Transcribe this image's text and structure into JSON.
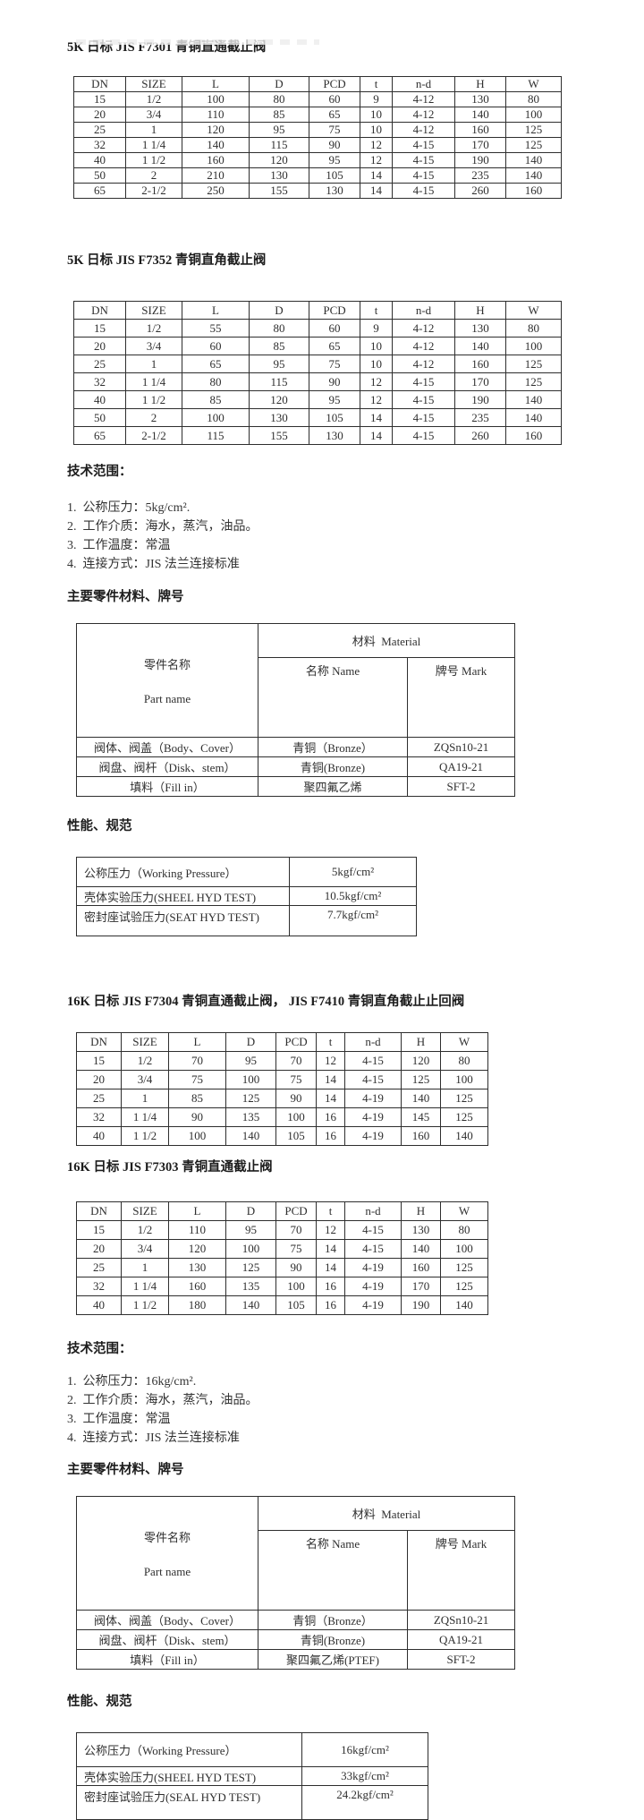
{
  "document": {
    "colors": {
      "background": "#ffffff",
      "text": "#2f2f2f",
      "border": "#2e2e2e"
    },
    "dim_headers": [
      "DN",
      "SIZE",
      "L",
      "D",
      "PCD",
      "t",
      "n-d",
      "H",
      "W"
    ],
    "headings": {
      "tech": "技术范围：",
      "materials": "主要零件材料、牌号",
      "performance": "性能、规范"
    },
    "mat_headers": {
      "part": "零件名称",
      "part_en": "Part name",
      "material": "材料  Material",
      "name": "名称 Name",
      "mark": "牌号 Mark"
    },
    "s1": {
      "title": "5K 日标 JIS F7301 青铜直通截止阀",
      "rows": [
        [
          "15",
          "1/2",
          "100",
          "80",
          "60",
          "9",
          "4-12",
          "130",
          "80"
        ],
        [
          "20",
          "3/4",
          "110",
          "85",
          "65",
          "10",
          "4-12",
          "140",
          "100"
        ],
        [
          "25",
          "1",
          "120",
          "95",
          "75",
          "10",
          "4-12",
          "160",
          "125"
        ],
        [
          "32",
          "1 1/4",
          "140",
          "115",
          "90",
          "12",
          "4-15",
          "170",
          "125"
        ],
        [
          "40",
          "1 1/2",
          "160",
          "120",
          "95",
          "12",
          "4-15",
          "190",
          "140"
        ],
        [
          "50",
          "2",
          "210",
          "130",
          "105",
          "14",
          "4-15",
          "235",
          "140"
        ],
        [
          "65",
          "2-1/2",
          "250",
          "155",
          "130",
          "14",
          "4-15",
          "260",
          "160"
        ]
      ]
    },
    "s2": {
      "title": "5K 日标 JIS F7352 青铜直角截止阀",
      "rows": [
        [
          "15",
          "1/2",
          "55",
          "80",
          "60",
          "9",
          "4-12",
          "130",
          "80"
        ],
        [
          "20",
          "3/4",
          "60",
          "85",
          "65",
          "10",
          "4-12",
          "140",
          "100"
        ],
        [
          "25",
          "1",
          "65",
          "95",
          "75",
          "10",
          "4-12",
          "160",
          "125"
        ],
        [
          "32",
          "1 1/4",
          "80",
          "115",
          "90",
          "12",
          "4-15",
          "170",
          "125"
        ],
        [
          "40",
          "1 1/2",
          "85",
          "120",
          "95",
          "12",
          "4-15",
          "190",
          "140"
        ],
        [
          "50",
          "2",
          "100",
          "130",
          "105",
          "14",
          "4-15",
          "235",
          "140"
        ],
        [
          "65",
          "2-1/2",
          "115",
          "155",
          "130",
          "14",
          "4-15",
          "260",
          "160"
        ]
      ]
    },
    "tech1": {
      "items": [
        "1.  公称压力：5kg/cm².",
        "2.  工作介质：海水，蒸汽，油品。",
        "3.  工作温度：常温",
        "4.  连接方式：JIS 法兰连接标准"
      ]
    },
    "mat1": {
      "rows": [
        [
          "阀体、阀盖（Body、Cover）",
          "青铜（Bronze）",
          "ZQSn10-21"
        ],
        [
          "阀盘、阀杆（Disk、stem）",
          "青铜(Bronze)",
          "QA19-21"
        ],
        [
          "填料（Fill in）",
          "聚四氟乙烯",
          "SFT-2"
        ]
      ]
    },
    "perf1": {
      "rows": [
        [
          "公称压力（Working Pressure）",
          "5kgf/cm²"
        ],
        [
          "壳体实验压力(SHEEL HYD TEST)",
          "10.5kgf/cm²"
        ],
        [
          "密封座试验压力(SEAT HYD TEST)",
          "7.7kgf/cm²"
        ]
      ]
    },
    "s3": {
      "title": "16K 日标 JIS F7304 青铜直通截止阀， JIS F7410 青铜直角截止止回阀",
      "rows": [
        [
          "15",
          "1/2",
          "70",
          "95",
          "70",
          "12",
          "4-15",
          "120",
          "80"
        ],
        [
          "20",
          "3/4",
          "75",
          "100",
          "75",
          "14",
          "4-15",
          "125",
          "100"
        ],
        [
          "25",
          "1",
          "85",
          "125",
          "90",
          "14",
          "4-19",
          "140",
          "125"
        ],
        [
          "32",
          "1 1/4",
          "90",
          "135",
          "100",
          "16",
          "4-19",
          "145",
          "125"
        ],
        [
          "40",
          "1 1/2",
          "100",
          "140",
          "105",
          "16",
          "4-19",
          "160",
          "140"
        ]
      ]
    },
    "s4": {
      "title": "16K 日标 JIS F7303 青铜直通截止阀",
      "rows": [
        [
          "15",
          "1/2",
          "110",
          "95",
          "70",
          "12",
          "4-15",
          "130",
          "80"
        ],
        [
          "20",
          "3/4",
          "120",
          "100",
          "75",
          "14",
          "4-15",
          "140",
          "100"
        ],
        [
          "25",
          "1",
          "130",
          "125",
          "90",
          "14",
          "4-19",
          "160",
          "125"
        ],
        [
          "32",
          "1 1/4",
          "160",
          "135",
          "100",
          "16",
          "4-19",
          "170",
          "125"
        ],
        [
          "40",
          "1 1/2",
          "180",
          "140",
          "105",
          "16",
          "4-19",
          "190",
          "140"
        ]
      ]
    },
    "tech2": {
      "items": [
        "1.  公称压力：16kg/cm².",
        "2.  工作介质：海水，蒸汽，油品。",
        "3.  工作温度：常温",
        "4.  连接方式：JIS 法兰连接标准"
      ]
    },
    "mat2": {
      "rows": [
        [
          "阀体、阀盖（Body、Cover）",
          "青铜（Bronze）",
          "ZQSn10-21"
        ],
        [
          "阀盘、阀杆（Disk、stem）",
          "青铜(Bronze)",
          "QA19-21"
        ],
        [
          "填料（Fill in）",
          "聚四氟乙烯(PTEF)",
          "SFT-2"
        ]
      ]
    },
    "perf2": {
      "rows": [
        [
          "公称压力（Working Pressure）",
          "16kgf/cm²"
        ],
        [
          "壳体实验压力(SHEEL HYD TEST)",
          "33kgf/cm²"
        ],
        [
          "密封座试验压力(SEAL HYD TEST)",
          "24.2kgf/cm²"
        ]
      ]
    }
  }
}
